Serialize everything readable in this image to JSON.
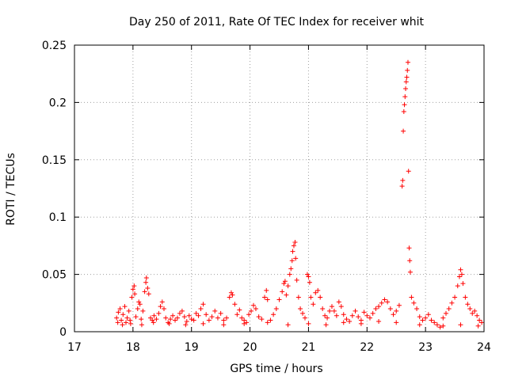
{
  "chart_data": {
    "type": "scatter",
    "title": "Day 250 of 2011, Rate Of TEC Index for receiver whit",
    "xlabel": "GPS time / hours",
    "ylabel": "ROTI / TECUs",
    "xlim": [
      17,
      24
    ],
    "ylim": [
      0,
      0.25
    ],
    "x_ticks": [
      "17",
      "18",
      "19",
      "20",
      "21",
      "22",
      "23",
      "24"
    ],
    "y_ticks": [
      "0",
      "0.05",
      "0.1",
      "0.15",
      "0.2",
      "0.25"
    ],
    "grid": true,
    "marker": "+",
    "colors": {
      "points": "#ff0000",
      "grid": "#a0a0a0",
      "axes": "#000000"
    },
    "series": [
      {
        "points": [
          [
            17.72,
            0.012
          ],
          [
            17.75,
            0.017
          ],
          [
            17.78,
            0.02
          ],
          [
            17.8,
            0.01
          ],
          [
            17.83,
            0.015
          ],
          [
            17.86,
            0.022
          ],
          [
            17.88,
            0.008
          ],
          [
            17.9,
            0.012
          ],
          [
            17.93,
            0.018
          ],
          [
            17.95,
            0.01
          ],
          [
            17.98,
            0.03
          ],
          [
            18.0,
            0.037
          ],
          [
            18.02,
            0.04
          ],
          [
            18.03,
            0.033
          ],
          [
            18.05,
            0.013
          ],
          [
            18.08,
            0.02
          ],
          [
            18.1,
            0.026
          ],
          [
            18.12,
            0.024
          ],
          [
            18.14,
            0.011
          ],
          [
            18.17,
            0.018
          ],
          [
            18.2,
            0.035
          ],
          [
            18.22,
            0.043
          ],
          [
            18.23,
            0.047
          ],
          [
            18.25,
            0.038
          ],
          [
            18.27,
            0.033
          ],
          [
            18.3,
            0.012
          ],
          [
            18.33,
            0.01
          ],
          [
            18.36,
            0.014
          ],
          [
            18.4,
            0.011
          ],
          [
            18.44,
            0.016
          ],
          [
            18.47,
            0.022
          ],
          [
            18.5,
            0.026
          ],
          [
            18.53,
            0.02
          ],
          [
            18.56,
            0.012
          ],
          [
            18.6,
            0.008
          ],
          [
            18.64,
            0.011
          ],
          [
            18.68,
            0.014
          ],
          [
            18.72,
            0.01
          ],
          [
            18.76,
            0.012
          ],
          [
            18.8,
            0.016
          ],
          [
            18.84,
            0.018
          ],
          [
            18.88,
            0.013
          ],
          [
            18.92,
            0.009
          ],
          [
            18.96,
            0.014
          ],
          [
            19.0,
            0.011
          ],
          [
            19.04,
            0.01
          ],
          [
            19.08,
            0.016
          ],
          [
            19.12,
            0.014
          ],
          [
            19.16,
            0.02
          ],
          [
            19.2,
            0.024
          ],
          [
            19.25,
            0.015
          ],
          [
            19.3,
            0.01
          ],
          [
            19.35,
            0.013
          ],
          [
            19.4,
            0.018
          ],
          [
            19.45,
            0.012
          ],
          [
            19.5,
            0.016
          ],
          [
            19.55,
            0.01
          ],
          [
            19.6,
            0.012
          ],
          [
            19.65,
            0.03
          ],
          [
            19.68,
            0.034
          ],
          [
            19.7,
            0.032
          ],
          [
            19.74,
            0.024
          ],
          [
            19.78,
            0.015
          ],
          [
            19.82,
            0.019
          ],
          [
            19.86,
            0.012
          ],
          [
            19.9,
            0.01
          ],
          [
            19.94,
            0.008
          ],
          [
            19.98,
            0.015
          ],
          [
            20.02,
            0.018
          ],
          [
            20.06,
            0.023
          ],
          [
            20.1,
            0.02
          ],
          [
            20.15,
            0.013
          ],
          [
            20.2,
            0.011
          ],
          [
            20.25,
            0.03
          ],
          [
            20.28,
            0.036
          ],
          [
            20.3,
            0.028
          ],
          [
            20.35,
            0.01
          ],
          [
            20.4,
            0.015
          ],
          [
            20.45,
            0.02
          ],
          [
            20.5,
            0.028
          ],
          [
            20.55,
            0.035
          ],
          [
            20.58,
            0.042
          ],
          [
            20.6,
            0.044
          ],
          [
            20.62,
            0.032
          ],
          [
            20.65,
            0.04
          ],
          [
            20.68,
            0.05
          ],
          [
            20.7,
            0.055
          ],
          [
            20.72,
            0.062
          ],
          [
            20.73,
            0.07
          ],
          [
            20.75,
            0.075
          ],
          [
            20.77,
            0.078
          ],
          [
            20.78,
            0.064
          ],
          [
            20.8,
            0.045
          ],
          [
            20.83,
            0.03
          ],
          [
            20.86,
            0.02
          ],
          [
            20.9,
            0.016
          ],
          [
            20.94,
            0.012
          ],
          [
            20.98,
            0.05
          ],
          [
            21.0,
            0.048
          ],
          [
            21.02,
            0.043
          ],
          [
            21.04,
            0.03
          ],
          [
            21.08,
            0.024
          ],
          [
            21.12,
            0.034
          ],
          [
            21.16,
            0.036
          ],
          [
            21.2,
            0.03
          ],
          [
            21.24,
            0.02
          ],
          [
            21.28,
            0.014
          ],
          [
            21.32,
            0.012
          ],
          [
            21.36,
            0.018
          ],
          [
            21.4,
            0.022
          ],
          [
            21.44,
            0.018
          ],
          [
            21.48,
            0.014
          ],
          [
            21.52,
            0.026
          ],
          [
            21.56,
            0.022
          ],
          [
            21.6,
            0.015
          ],
          [
            21.65,
            0.011
          ],
          [
            21.7,
            0.009
          ],
          [
            21.75,
            0.014
          ],
          [
            21.8,
            0.018
          ],
          [
            21.85,
            0.013
          ],
          [
            21.9,
            0.01
          ],
          [
            21.95,
            0.017
          ],
          [
            22.0,
            0.014
          ],
          [
            22.05,
            0.012
          ],
          [
            22.1,
            0.016
          ],
          [
            22.15,
            0.02
          ],
          [
            22.2,
            0.022
          ],
          [
            22.25,
            0.025
          ],
          [
            22.3,
            0.028
          ],
          [
            22.35,
            0.026
          ],
          [
            22.4,
            0.02
          ],
          [
            22.45,
            0.015
          ],
          [
            22.5,
            0.018
          ],
          [
            22.55,
            0.023
          ],
          [
            22.6,
            0.127
          ],
          [
            22.61,
            0.132
          ],
          [
            22.62,
            0.175
          ],
          [
            22.63,
            0.192
          ],
          [
            22.64,
            0.198
          ],
          [
            22.65,
            0.205
          ],
          [
            22.66,
            0.212
          ],
          [
            22.67,
            0.218
          ],
          [
            22.68,
            0.222
          ],
          [
            22.69,
            0.228
          ],
          [
            22.7,
            0.235
          ],
          [
            22.71,
            0.14
          ],
          [
            22.72,
            0.073
          ],
          [
            22.73,
            0.062
          ],
          [
            22.74,
            0.052
          ],
          [
            22.76,
            0.03
          ],
          [
            22.8,
            0.025
          ],
          [
            22.85,
            0.02
          ],
          [
            22.9,
            0.013
          ],
          [
            22.95,
            0.01
          ],
          [
            23.0,
            0.012
          ],
          [
            23.05,
            0.015
          ],
          [
            23.1,
            0.01
          ],
          [
            23.15,
            0.008
          ],
          [
            23.2,
            0.006
          ],
          [
            23.25,
            0.004
          ],
          [
            23.3,
            0.012
          ],
          [
            23.35,
            0.016
          ],
          [
            23.4,
            0.02
          ],
          [
            23.45,
            0.025
          ],
          [
            23.5,
            0.03
          ],
          [
            23.55,
            0.04
          ],
          [
            23.58,
            0.048
          ],
          [
            23.6,
            0.054
          ],
          [
            23.62,
            0.05
          ],
          [
            23.64,
            0.042
          ],
          [
            23.68,
            0.03
          ],
          [
            23.72,
            0.024
          ],
          [
            23.76,
            0.02
          ],
          [
            23.8,
            0.016
          ],
          [
            23.84,
            0.018
          ],
          [
            23.88,
            0.014
          ],
          [
            23.92,
            0.01
          ],
          [
            23.96,
            0.008
          ],
          [
            17.74,
            0.008
          ],
          [
            17.82,
            0.006
          ],
          [
            17.96,
            0.007
          ],
          [
            18.15,
            0.006
          ],
          [
            18.35,
            0.008
          ],
          [
            18.62,
            0.007
          ],
          [
            18.9,
            0.006
          ],
          [
            19.2,
            0.007
          ],
          [
            19.55,
            0.006
          ],
          [
            19.9,
            0.007
          ],
          [
            20.3,
            0.008
          ],
          [
            20.65,
            0.006
          ],
          [
            21.0,
            0.007
          ],
          [
            21.3,
            0.006
          ],
          [
            21.6,
            0.008
          ],
          [
            21.9,
            0.007
          ],
          [
            22.2,
            0.009
          ],
          [
            22.5,
            0.008
          ],
          [
            22.9,
            0.006
          ],
          [
            23.3,
            0.005
          ],
          [
            23.6,
            0.006
          ],
          [
            23.9,
            0.005
          ]
        ]
      }
    ]
  }
}
